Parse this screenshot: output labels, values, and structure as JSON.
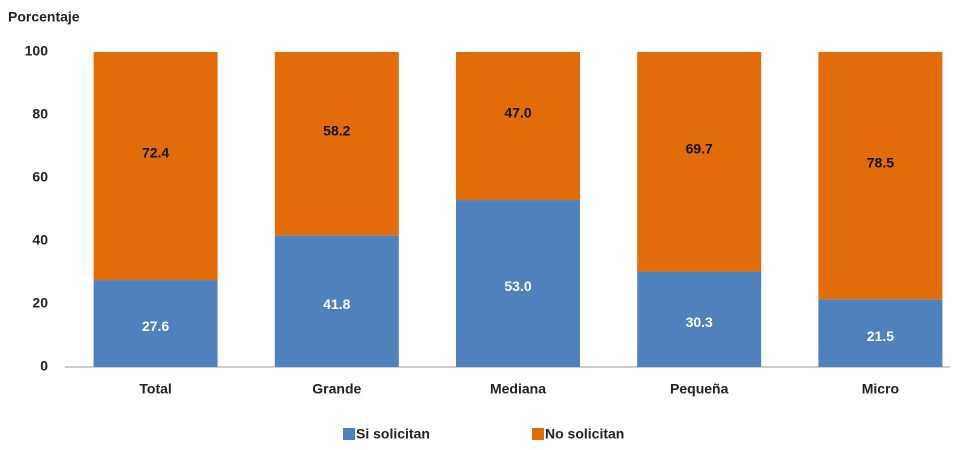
{
  "chart_data": {
    "type": "bar",
    "stacked": true,
    "y_label": "Porcentaje",
    "categories": [
      "Total",
      "Grande",
      "Mediana",
      "Pequeña",
      "Micro"
    ],
    "series": [
      {
        "name": "Si solicitan",
        "color": "#4f81bd",
        "values": [
          27.6,
          41.8,
          53,
          30.3,
          21.5
        ],
        "value_labels": [
          "27.6",
          "41.8",
          "53.0",
          "30.3",
          "21.5"
        ]
      },
      {
        "name": "No solicitan",
        "color": "#e36c0a",
        "values": [
          72.4,
          58.2,
          47,
          69.7,
          78.5
        ],
        "value_labels": [
          "72.4",
          "58.2",
          "47.0",
          "69.7",
          "78.5"
        ]
      }
    ],
    "ylim": [
      0,
      100
    ],
    "yticks": [
      0,
      20,
      40,
      60,
      80,
      100
    ],
    "legend": "bottom"
  }
}
